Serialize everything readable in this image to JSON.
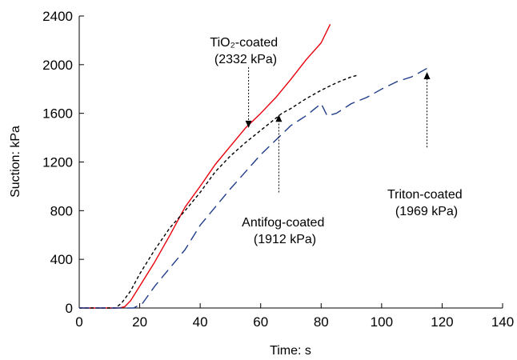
{
  "chart_data": {
    "type": "line",
    "xlabel": "Time: s",
    "ylabel": "Suction: kPa",
    "xlim": [
      0,
      140
    ],
    "ylim": [
      0,
      2400
    ],
    "xticks": [
      0,
      20,
      40,
      60,
      80,
      100,
      120,
      140
    ],
    "yticks": [
      0,
      400,
      800,
      1200,
      1600,
      2000,
      2400
    ],
    "grid": false,
    "series": [
      {
        "key": "tio2",
        "color": "#e8000b",
        "dash": "solid",
        "points": [
          [
            0,
            0
          ],
          [
            13,
            0
          ],
          [
            15,
            10
          ],
          [
            17,
            60
          ],
          [
            20,
            180
          ],
          [
            25,
            380
          ],
          [
            30,
            600
          ],
          [
            35,
            830
          ],
          [
            40,
            1000
          ],
          [
            45,
            1180
          ],
          [
            50,
            1330
          ],
          [
            55,
            1480
          ],
          [
            60,
            1600
          ],
          [
            65,
            1730
          ],
          [
            70,
            1880
          ],
          [
            75,
            2040
          ],
          [
            80,
            2180
          ],
          [
            83,
            2332
          ]
        ]
      },
      {
        "key": "antifog",
        "color": "#000000",
        "dash": "dashed",
        "points": [
          [
            0,
            0
          ],
          [
            12,
            0
          ],
          [
            14,
            40
          ],
          [
            17,
            140
          ],
          [
            20,
            280
          ],
          [
            25,
            480
          ],
          [
            30,
            660
          ],
          [
            35,
            800
          ],
          [
            40,
            950
          ],
          [
            45,
            1120
          ],
          [
            50,
            1250
          ],
          [
            55,
            1360
          ],
          [
            60,
            1460
          ],
          [
            65,
            1560
          ],
          [
            67,
            1600
          ],
          [
            70,
            1640
          ],
          [
            75,
            1720
          ],
          [
            80,
            1790
          ],
          [
            85,
            1850
          ],
          [
            90,
            1900
          ],
          [
            92,
            1912
          ]
        ]
      },
      {
        "key": "triton",
        "color": "#1f3c88",
        "dash": "longdash",
        "points": [
          [
            0,
            0
          ],
          [
            18,
            0
          ],
          [
            21,
            40
          ],
          [
            25,
            180
          ],
          [
            30,
            330
          ],
          [
            35,
            480
          ],
          [
            40,
            680
          ],
          [
            45,
            830
          ],
          [
            50,
            980
          ],
          [
            55,
            1120
          ],
          [
            60,
            1260
          ],
          [
            65,
            1380
          ],
          [
            70,
            1500
          ],
          [
            75,
            1580
          ],
          [
            78,
            1640
          ],
          [
            80,
            1680
          ],
          [
            82,
            1580
          ],
          [
            85,
            1600
          ],
          [
            90,
            1680
          ],
          [
            95,
            1730
          ],
          [
            100,
            1800
          ],
          [
            105,
            1860
          ],
          [
            110,
            1900
          ],
          [
            115,
            1969
          ]
        ]
      }
    ],
    "annotations": [
      {
        "key": "tio2",
        "lines": [
          "TiO₂-coated",
          "(2332 kPa)"
        ],
        "arrow_from": [
          56,
          1980
        ],
        "arrow_to": [
          56,
          1480
        ]
      },
      {
        "key": "antifog",
        "lines": [
          "Antifog-coated",
          "(1912 kPa)"
        ],
        "arrow_from": [
          66,
          950
        ],
        "arrow_to": [
          66,
          1590
        ]
      },
      {
        "key": "triton",
        "lines": [
          "Triton-coated",
          "(1969 kPa)"
        ],
        "arrow_from": [
          115,
          1320
        ],
        "arrow_to": [
          115,
          1940
        ]
      }
    ]
  }
}
